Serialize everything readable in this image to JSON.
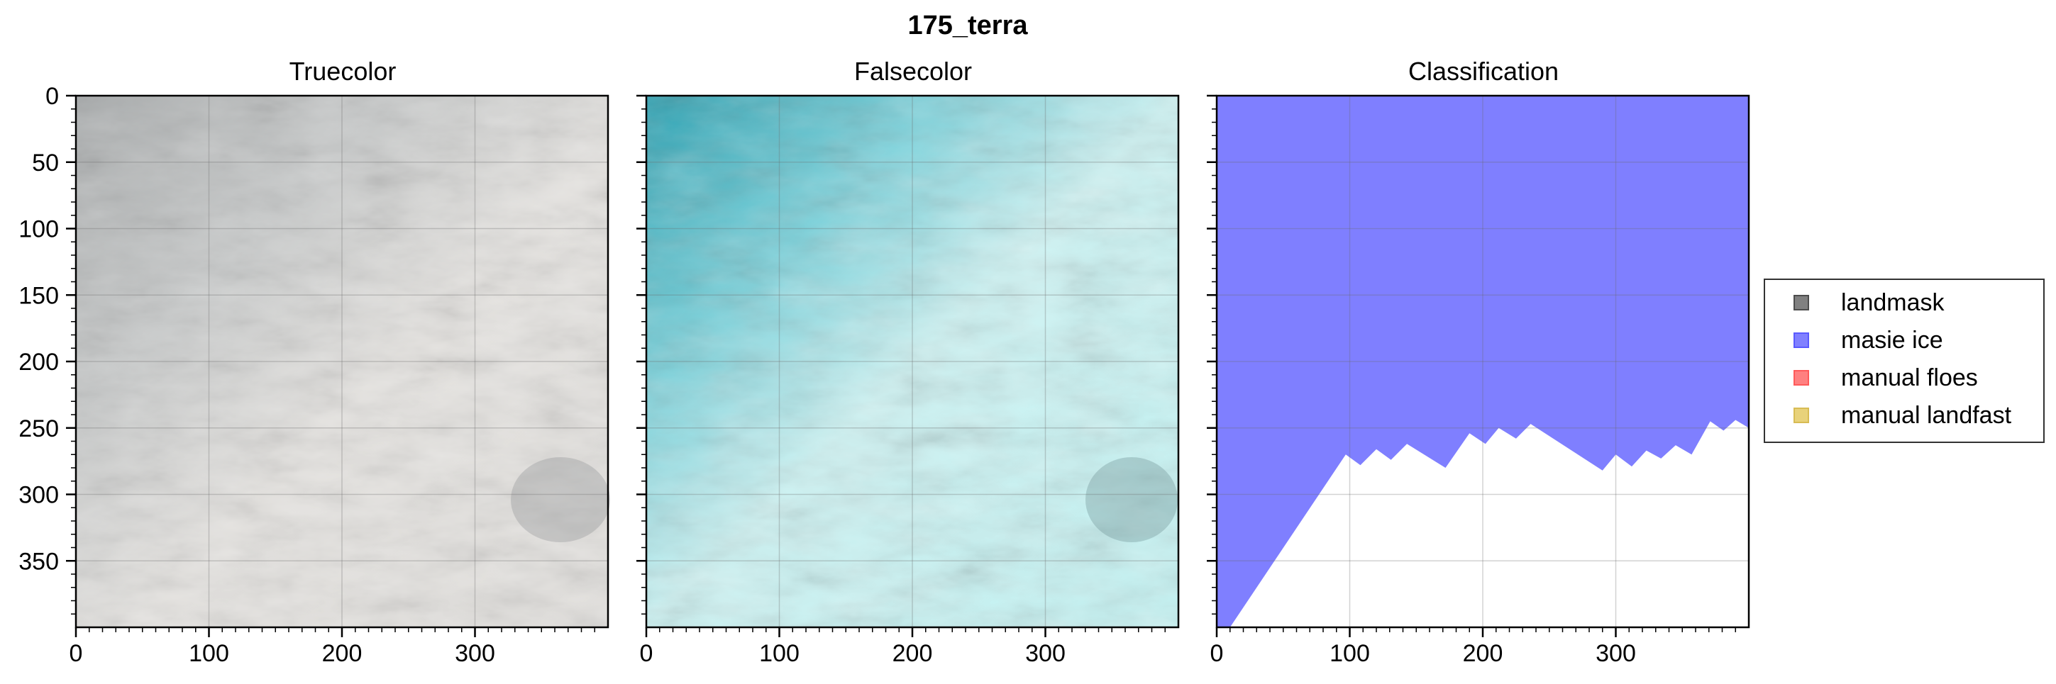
{
  "figure": {
    "title": "175_terra"
  },
  "chart_data": [
    {
      "type": "heatmap",
      "title": "Truecolor",
      "xlabel": "",
      "ylabel": "",
      "xlim": [
        0,
        400
      ],
      "ylim": [
        400,
        0
      ],
      "xticks": [
        "0",
        "100",
        "200",
        "300"
      ],
      "yticks": [
        "0",
        "50",
        "100",
        "150",
        "200",
        "250",
        "300",
        "350"
      ],
      "grid": true
    },
    {
      "type": "heatmap",
      "title": "Falsecolor",
      "xlabel": "",
      "ylabel": "",
      "xlim": [
        0,
        400
      ],
      "ylim": [
        400,
        0
      ],
      "xticks": [
        "0",
        "100",
        "200",
        "300"
      ],
      "grid": true
    },
    {
      "type": "area",
      "title": "Classification",
      "xlabel": "",
      "ylabel": "",
      "xlim": [
        0,
        400
      ],
      "ylim": [
        400,
        0
      ],
      "xticks": [
        "0",
        "100",
        "200",
        "300"
      ],
      "grid": true,
      "series": [
        {
          "name": "masie ice",
          "color": "#7f7fff",
          "boundary": [
            [
              0,
              400
            ],
            [
              10,
              400
            ],
            [
              97,
              270
            ],
            [
              108,
              278
            ],
            [
              120,
              266
            ],
            [
              131,
              274
            ],
            [
              143,
              262
            ],
            [
              172,
              280
            ],
            [
              190,
              254
            ],
            [
              202,
              262
            ],
            [
              212,
              250
            ],
            [
              225,
              258
            ],
            [
              236,
              247
            ],
            [
              290,
              282
            ],
            [
              300,
              270
            ],
            [
              312,
              279
            ],
            [
              323,
              267
            ],
            [
              334,
              273
            ],
            [
              345,
              263
            ],
            [
              357,
              270
            ],
            [
              371,
              245
            ],
            [
              381,
              252
            ],
            [
              390,
              244
            ],
            [
              400,
              250
            ]
          ]
        }
      ]
    }
  ],
  "legend": {
    "position": "right",
    "items": [
      {
        "label": "landmask",
        "color": "#808080",
        "border": "#4d4d4d"
      },
      {
        "label": "masie ice",
        "color": "#8080ff",
        "border": "#5a5aff"
      },
      {
        "label": "manual floes",
        "color": "#ff8080",
        "border": "#ff5a5a"
      },
      {
        "label": "manual landfast",
        "color": "#e8d27a",
        "border": "#d8bc54"
      }
    ]
  }
}
